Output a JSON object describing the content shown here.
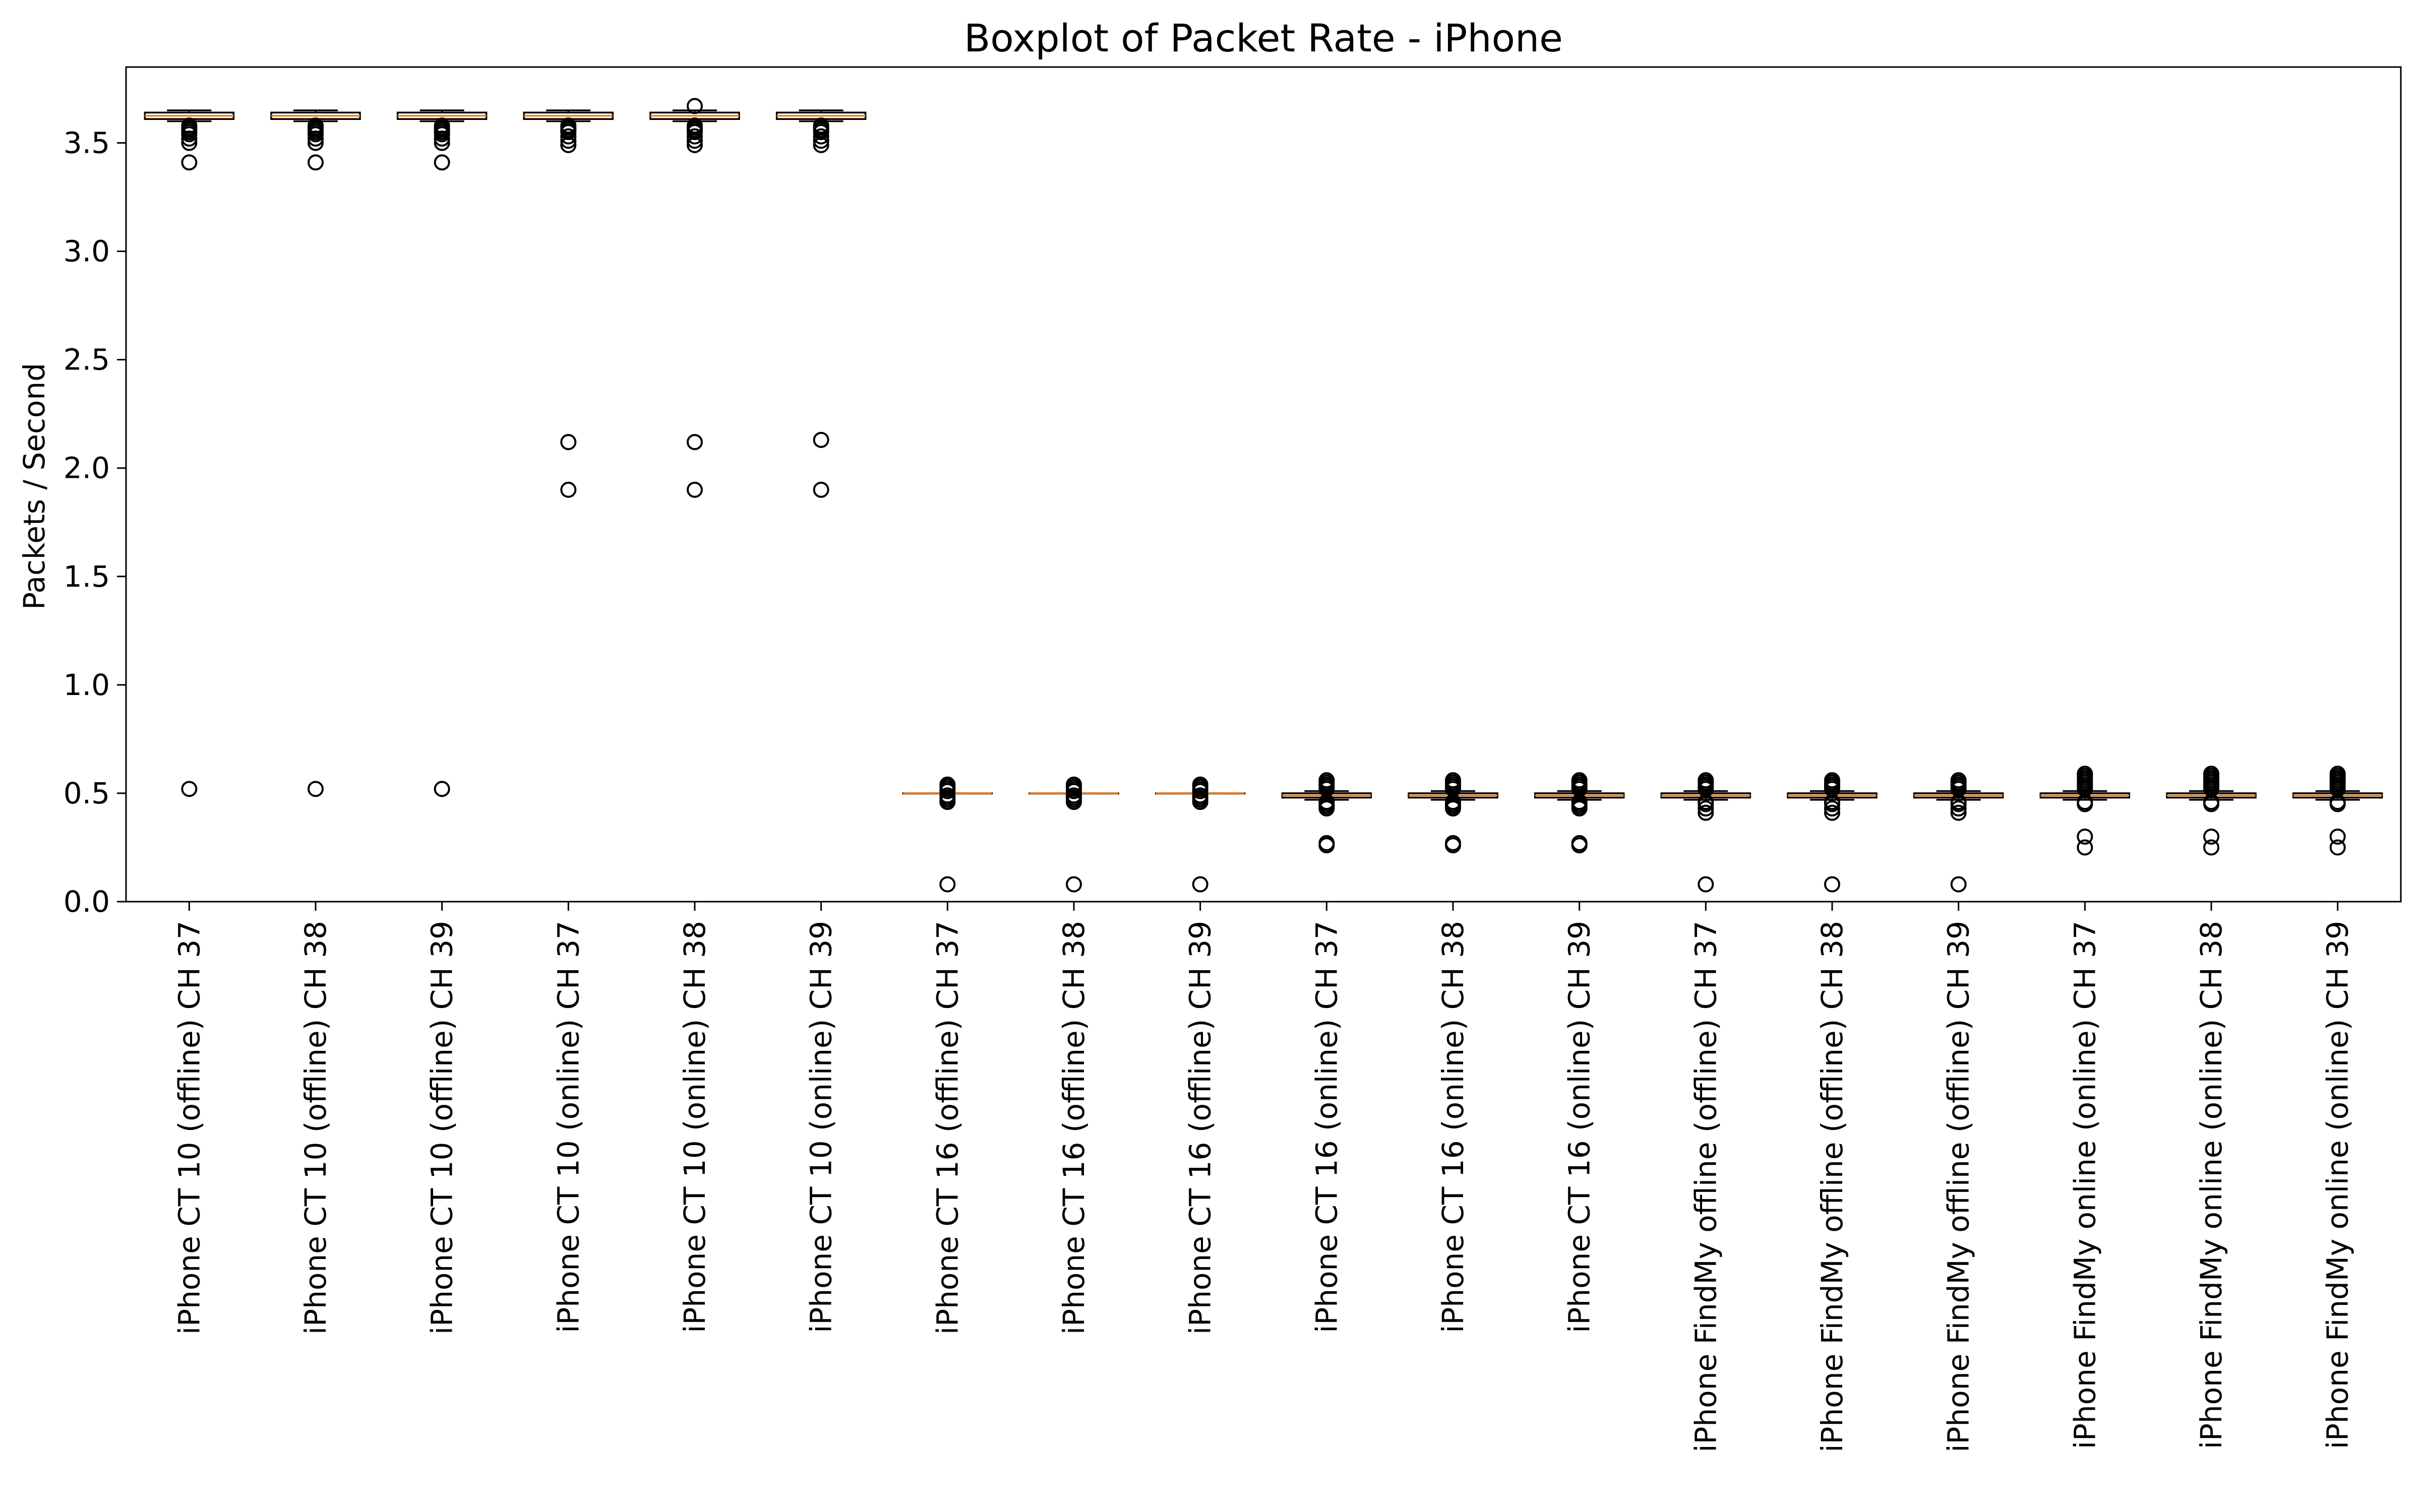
{
  "chart_data": {
    "type": "boxplot",
    "title": "Boxplot of Packet Rate - iPhone",
    "xlabel": "",
    "ylabel": "Packets / Second",
    "ylim": [
      0.0,
      3.85
    ],
    "yticks": [
      "0.0",
      "0.5",
      "1.0",
      "1.5",
      "2.0",
      "2.5",
      "3.0",
      "3.5"
    ],
    "grid": false,
    "median_color": "#ff7f0e",
    "series": [
      {
        "label": "iPhone CT 10 (offline) CH 37",
        "whislo": 3.6,
        "q1": 3.61,
        "median": 3.625,
        "q3": 3.64,
        "whishi": 3.65,
        "fliers": [
          3.58,
          3.57,
          3.56,
          3.55,
          3.54,
          3.52,
          3.5,
          3.41,
          0.52
        ]
      },
      {
        "label": "iPhone CT 10 (offline) CH 38",
        "whislo": 3.6,
        "q1": 3.61,
        "median": 3.625,
        "q3": 3.64,
        "whishi": 3.65,
        "fliers": [
          3.58,
          3.57,
          3.56,
          3.55,
          3.54,
          3.52,
          3.5,
          3.41,
          0.52
        ]
      },
      {
        "label": "iPhone CT 10 (offline) CH 39",
        "whislo": 3.6,
        "q1": 3.61,
        "median": 3.625,
        "q3": 3.64,
        "whishi": 3.65,
        "fliers": [
          3.58,
          3.57,
          3.56,
          3.55,
          3.54,
          3.52,
          3.5,
          3.41,
          0.52
        ]
      },
      {
        "label": "iPhone CT 10 (online) CH 37",
        "whislo": 3.6,
        "q1": 3.61,
        "median": 3.625,
        "q3": 3.64,
        "whishi": 3.65,
        "fliers": [
          3.58,
          3.57,
          3.56,
          3.55,
          3.53,
          3.51,
          3.49,
          2.12,
          1.9
        ]
      },
      {
        "label": "iPhone CT 10 (online) CH 38",
        "whislo": 3.6,
        "q1": 3.61,
        "median": 3.625,
        "q3": 3.64,
        "whishi": 3.65,
        "fliers": [
          3.67,
          3.58,
          3.57,
          3.56,
          3.55,
          3.53,
          3.51,
          3.49,
          2.12,
          1.9
        ]
      },
      {
        "label": "iPhone CT 10 (online) CH 39",
        "whislo": 3.6,
        "q1": 3.61,
        "median": 3.625,
        "q3": 3.64,
        "whishi": 3.65,
        "fliers": [
          3.58,
          3.57,
          3.56,
          3.55,
          3.53,
          3.51,
          3.49,
          2.13,
          1.9
        ]
      },
      {
        "label": "iPhone CT 16 (offline) CH 37",
        "whislo": 0.5,
        "q1": 0.5,
        "median": 0.5,
        "q3": 0.5,
        "whishi": 0.5,
        "fliers": [
          0.54,
          0.53,
          0.52,
          0.51,
          0.49,
          0.48,
          0.47,
          0.46,
          0.08
        ]
      },
      {
        "label": "iPhone CT 16 (offline) CH 38",
        "whislo": 0.5,
        "q1": 0.5,
        "median": 0.5,
        "q3": 0.5,
        "whishi": 0.5,
        "fliers": [
          0.54,
          0.53,
          0.52,
          0.51,
          0.49,
          0.48,
          0.47,
          0.46,
          0.08
        ]
      },
      {
        "label": "iPhone CT 16 (offline) CH 39",
        "whislo": 0.5,
        "q1": 0.5,
        "median": 0.5,
        "q3": 0.5,
        "whishi": 0.5,
        "fliers": [
          0.54,
          0.53,
          0.52,
          0.51,
          0.49,
          0.48,
          0.47,
          0.46,
          0.08
        ]
      },
      {
        "label": "iPhone CT 16 (online) CH 37",
        "whislo": 0.47,
        "q1": 0.48,
        "median": 0.49,
        "q3": 0.5,
        "whishi": 0.51,
        "fliers": [
          0.56,
          0.55,
          0.54,
          0.53,
          0.52,
          0.46,
          0.45,
          0.44,
          0.43,
          0.27,
          0.26
        ]
      },
      {
        "label": "iPhone CT 16 (online) CH 38",
        "whislo": 0.47,
        "q1": 0.48,
        "median": 0.49,
        "q3": 0.5,
        "whishi": 0.51,
        "fliers": [
          0.56,
          0.55,
          0.54,
          0.53,
          0.52,
          0.46,
          0.45,
          0.44,
          0.43,
          0.27,
          0.26
        ]
      },
      {
        "label": "iPhone CT 16 (online) CH 39",
        "whislo": 0.47,
        "q1": 0.48,
        "median": 0.49,
        "q3": 0.5,
        "whishi": 0.51,
        "fliers": [
          0.56,
          0.55,
          0.54,
          0.53,
          0.52,
          0.46,
          0.45,
          0.44,
          0.43,
          0.27,
          0.26
        ]
      },
      {
        "label": "iPhone FindMy offline (offline) CH 37",
        "whislo": 0.47,
        "q1": 0.48,
        "median": 0.49,
        "q3": 0.5,
        "whishi": 0.51,
        "fliers": [
          0.56,
          0.55,
          0.54,
          0.53,
          0.52,
          0.46,
          0.45,
          0.43,
          0.41,
          0.08
        ]
      },
      {
        "label": "iPhone FindMy offline (offline) CH 38",
        "whislo": 0.47,
        "q1": 0.48,
        "median": 0.49,
        "q3": 0.5,
        "whishi": 0.51,
        "fliers": [
          0.56,
          0.55,
          0.54,
          0.53,
          0.52,
          0.46,
          0.45,
          0.43,
          0.41,
          0.08
        ]
      },
      {
        "label": "iPhone FindMy offline (offline) CH 39",
        "whislo": 0.47,
        "q1": 0.48,
        "median": 0.49,
        "q3": 0.5,
        "whishi": 0.51,
        "fliers": [
          0.56,
          0.55,
          0.54,
          0.53,
          0.52,
          0.46,
          0.45,
          0.43,
          0.41,
          0.08
        ]
      },
      {
        "label": "iPhone FindMy online (online) CH 37",
        "whislo": 0.47,
        "q1": 0.48,
        "median": 0.49,
        "q3": 0.5,
        "whishi": 0.51,
        "fliers": [
          0.59,
          0.58,
          0.57,
          0.56,
          0.55,
          0.54,
          0.53,
          0.52,
          0.46,
          0.45,
          0.3,
          0.25
        ]
      },
      {
        "label": "iPhone FindMy online (online) CH 38",
        "whislo": 0.47,
        "q1": 0.48,
        "median": 0.49,
        "q3": 0.5,
        "whishi": 0.51,
        "fliers": [
          0.59,
          0.58,
          0.57,
          0.56,
          0.55,
          0.54,
          0.53,
          0.52,
          0.46,
          0.45,
          0.3,
          0.25
        ]
      },
      {
        "label": "iPhone FindMy online (online) CH 39",
        "whislo": 0.47,
        "q1": 0.48,
        "median": 0.49,
        "q3": 0.5,
        "whishi": 0.51,
        "fliers": [
          0.59,
          0.58,
          0.57,
          0.56,
          0.55,
          0.54,
          0.53,
          0.52,
          0.46,
          0.45,
          0.3,
          0.25
        ]
      }
    ]
  }
}
